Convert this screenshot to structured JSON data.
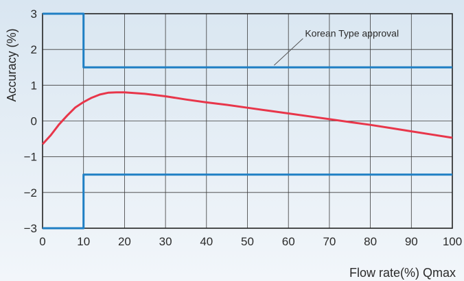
{
  "chart_data": {
    "type": "line",
    "title": "",
    "xlabel": "Flow rate(%) Qmax",
    "ylabel": "Accuracy (%)",
    "xlim": [
      0,
      100
    ],
    "ylim": [
      -3,
      3
    ],
    "xticks": [
      0,
      10,
      20,
      30,
      40,
      50,
      60,
      70,
      80,
      90,
      100
    ],
    "yticks": [
      3,
      2,
      1,
      0,
      -1,
      -2,
      -3
    ],
    "ytick_labels": [
      "3",
      "2",
      "1",
      "0",
      "−1",
      "−2",
      "−3"
    ],
    "grid": true,
    "colors": {
      "accuracy_curve": "#e8364a",
      "limit_lines": "#1f7fc4",
      "grid": "#3a3a3a",
      "background_top": "#d9e6f1",
      "background_bottom": "#f2f6fa"
    },
    "series": [
      {
        "x": [
          0,
          2,
          4,
          6,
          8,
          10,
          12,
          14,
          16,
          18,
          20,
          25,
          30,
          35,
          40,
          45,
          50,
          55,
          60,
          65,
          70,
          75,
          80,
          85,
          90,
          95,
          100
        ],
        "y": [
          -0.65,
          -0.4,
          -0.1,
          0.15,
          0.38,
          0.53,
          0.65,
          0.74,
          0.79,
          0.8,
          0.8,
          0.76,
          0.69,
          0.6,
          0.52,
          0.45,
          0.37,
          0.29,
          0.21,
          0.13,
          0.05,
          -0.03,
          -0.11,
          -0.2,
          -0.29,
          -0.38,
          -0.47
        ]
      },
      {
        "x": [
          0,
          10,
          10,
          100
        ],
        "y": [
          3,
          3,
          1.5,
          1.5
        ]
      },
      {
        "x": [
          0,
          10,
          10,
          100
        ],
        "y": [
          -3,
          -3,
          -1.5,
          -1.5
        ]
      }
    ],
    "annotations": [
      {
        "text": "Korean Type approval",
        "target": {
          "x": 55,
          "y": 1.5
        }
      }
    ]
  }
}
